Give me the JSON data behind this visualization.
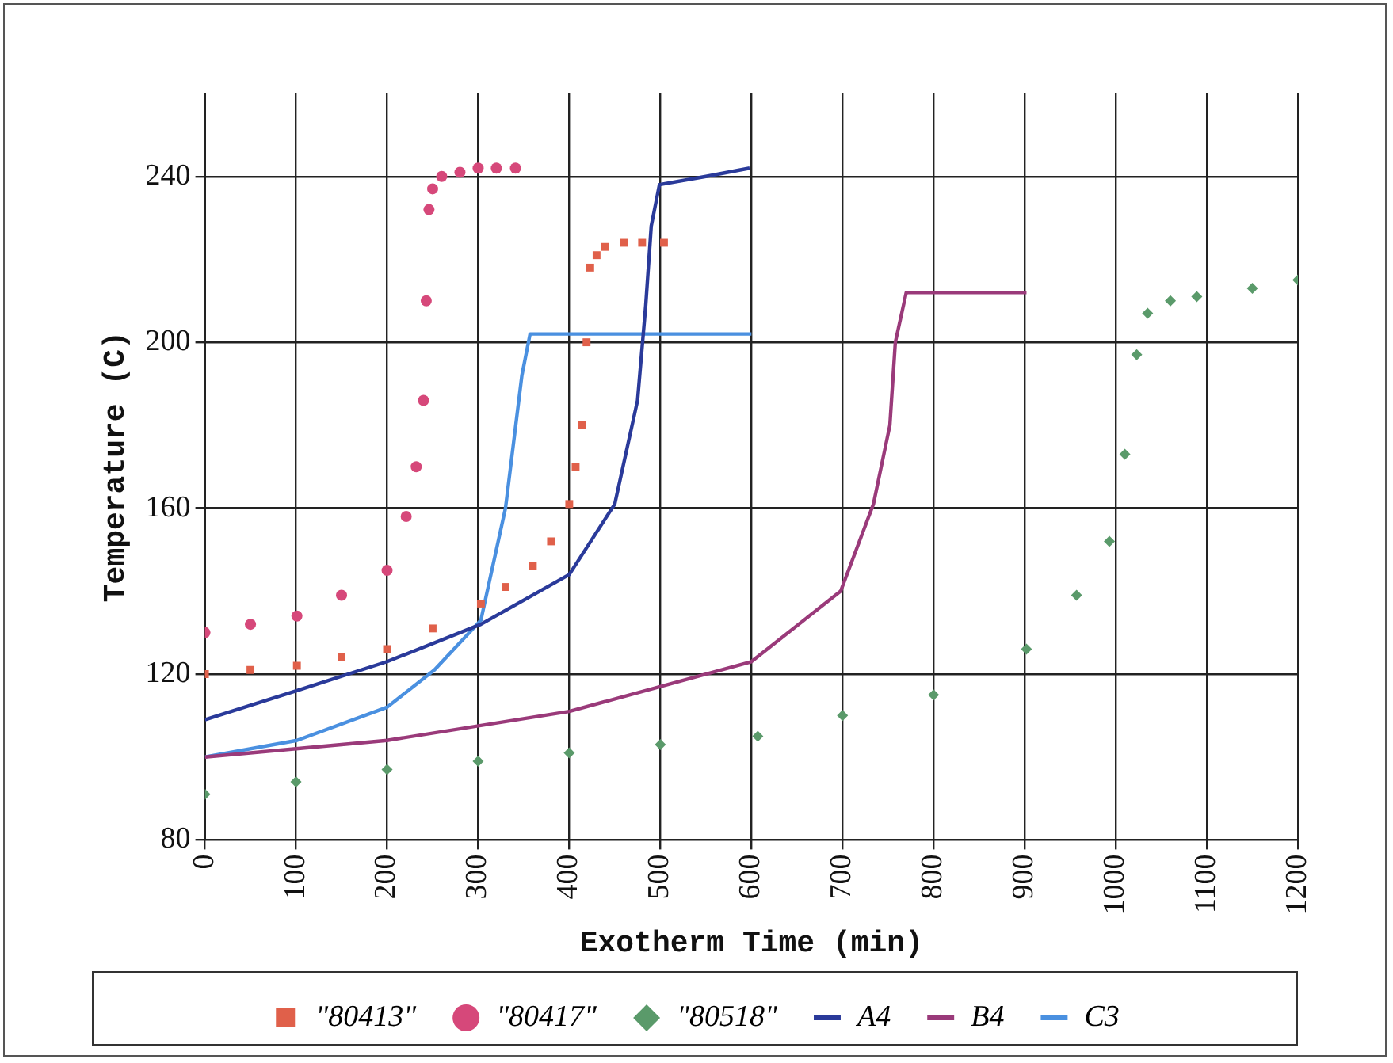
{
  "chart_data": {
    "type": "line",
    "xlabel": "Exotherm Time (min)",
    "ylabel": "Temperature (C)",
    "xlim": [
      0,
      1200
    ],
    "xticks": [
      0,
      100,
      200,
      300,
      400,
      500,
      600,
      700,
      800,
      900,
      1000,
      1100,
      1200
    ],
    "ylim": [
      80,
      260
    ],
    "yticks": [
      80,
      120,
      160,
      200,
      240
    ],
    "grid": true,
    "legend": "bottom",
    "series": [
      {
        "name": "\"80413\"",
        "type": "scatter",
        "marker": "square",
        "color": "#e0604a",
        "x": [
          0,
          50,
          101,
          150,
          200,
          250,
          303,
          330,
          360,
          380,
          400,
          407,
          414,
          419,
          423,
          430,
          439,
          460,
          480,
          504
        ],
        "values": [
          120,
          121,
          122,
          124,
          126,
          131,
          137,
          141,
          146,
          152,
          161,
          170,
          180,
          200,
          218,
          221,
          223,
          224,
          224,
          224
        ]
      },
      {
        "name": "\"80417\"",
        "type": "scatter",
        "marker": "circle",
        "color": "#d6487a",
        "x": [
          0,
          50,
          101,
          150,
          200,
          221,
          232,
          240,
          243,
          246,
          250,
          260,
          280,
          300,
          320,
          341
        ],
        "values": [
          130,
          132,
          134,
          139,
          145,
          158,
          170,
          186,
          210,
          232,
          237,
          240,
          241,
          242,
          242,
          242
        ]
      },
      {
        "name": "\"80518\"",
        "type": "scatter",
        "marker": "diamond",
        "color": "#5a9a6a",
        "x": [
          0,
          100,
          200,
          300,
          400,
          500,
          607,
          700,
          800,
          902,
          957,
          993,
          1010,
          1023,
          1035,
          1060,
          1089,
          1150,
          1200
        ],
        "values": [
          91,
          94,
          97,
          99,
          101,
          103,
          105,
          110,
          115,
          126,
          139,
          152,
          173,
          197,
          207,
          210,
          211,
          213,
          215
        ]
      },
      {
        "name": "A4",
        "type": "line",
        "marker": "none",
        "color": "#2a3a9a",
        "x": [
          0,
          101,
          200,
          303,
          400,
          450,
          475,
          484,
          490,
          499,
          550,
          598
        ],
        "values": [
          109,
          116,
          123,
          132,
          144,
          161,
          186,
          209,
          228,
          238,
          240,
          242
        ]
      },
      {
        "name": "B4",
        "type": "line",
        "marker": "none",
        "color": "#9a3a7a",
        "x": [
          0,
          200,
          400,
          600,
          698,
          734,
          752,
          758,
          770,
          902
        ],
        "values": [
          100,
          104,
          111,
          123,
          140,
          161,
          180,
          200,
          212,
          212
        ]
      },
      {
        "name": "C3",
        "type": "line",
        "marker": "none",
        "color": "#4a90e0",
        "x": [
          0,
          101,
          200,
          252,
          303,
          330,
          348,
          357,
          600
        ],
        "values": [
          100,
          104,
          112,
          121,
          133,
          160,
          192,
          202,
          202
        ]
      }
    ]
  }
}
